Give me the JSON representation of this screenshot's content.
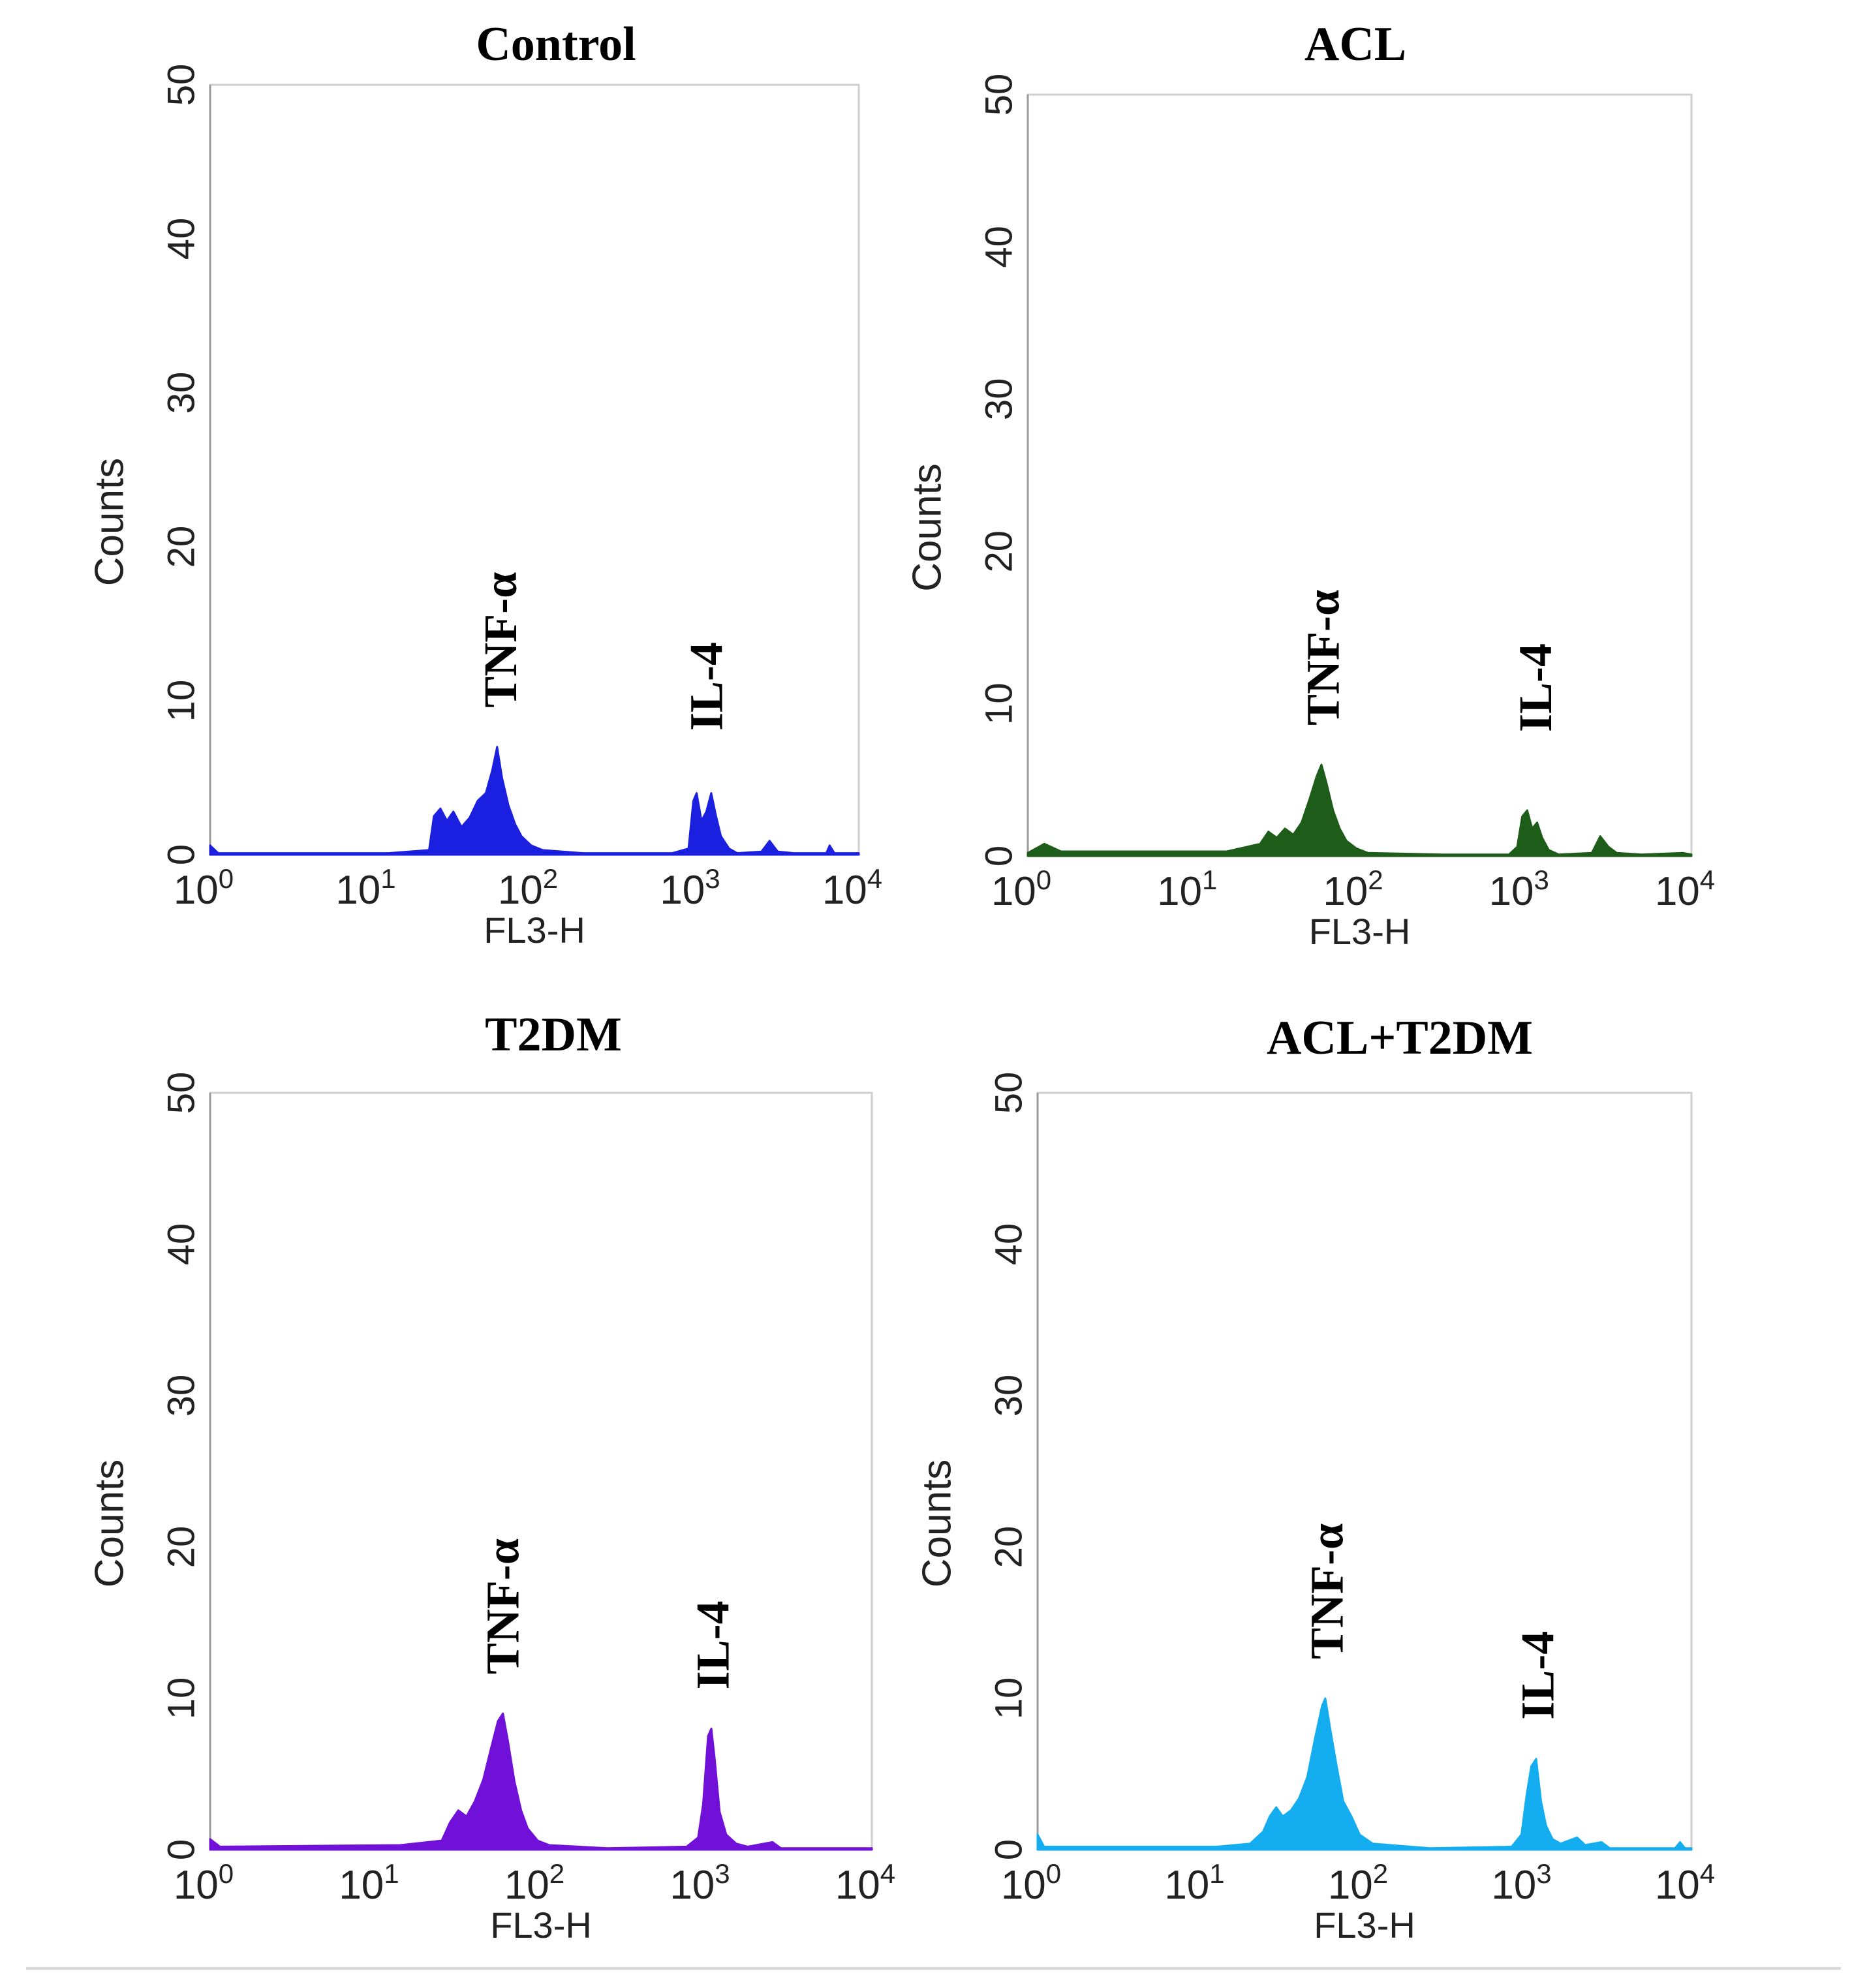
{
  "chart_data": [
    {
      "type": "histogram",
      "title": "Control",
      "xlabel": "FL3-H",
      "ylabel": "Counts",
      "x_scale": "log",
      "xlim_decades": [
        0,
        4
      ],
      "ylim": [
        0,
        50
      ],
      "xticks": [
        "0",
        "1",
        "2",
        "3",
        "4"
      ],
      "yticks": [
        "0",
        "10",
        "20",
        "30",
        "40",
        "50"
      ],
      "color": "#1a1fe0",
      "peaks": [
        {
          "label": "TNF-α",
          "log_x": 1.78,
          "count": 7
        },
        {
          "label": "IL-4",
          "log_x": 3.05,
          "count": 4
        }
      ],
      "profile": [
        [
          0,
          0.6
        ],
        [
          0.05,
          0.1
        ],
        [
          1.1,
          0.1
        ],
        [
          1.35,
          0.3
        ],
        [
          1.38,
          2.5
        ],
        [
          1.42,
          3
        ],
        [
          1.46,
          2.2
        ],
        [
          1.5,
          2.8
        ],
        [
          1.55,
          1.8
        ],
        [
          1.6,
          2.4
        ],
        [
          1.65,
          3.5
        ],
        [
          1.7,
          4
        ],
        [
          1.74,
          5.5
        ],
        [
          1.77,
          7
        ],
        [
          1.8,
          5
        ],
        [
          1.84,
          3.2
        ],
        [
          1.88,
          2
        ],
        [
          1.92,
          1.2
        ],
        [
          1.98,
          0.6
        ],
        [
          2.05,
          0.3
        ],
        [
          2.3,
          0.1
        ],
        [
          2.85,
          0.1
        ],
        [
          2.95,
          0.4
        ],
        [
          2.98,
          3.5
        ],
        [
          3.0,
          4
        ],
        [
          3.03,
          2.2
        ],
        [
          3.06,
          2.8
        ],
        [
          3.09,
          4
        ],
        [
          3.12,
          2.5
        ],
        [
          3.15,
          1.2
        ],
        [
          3.2,
          0.4
        ],
        [
          3.25,
          0.1
        ],
        [
          3.4,
          0.2
        ],
        [
          3.45,
          0.9
        ],
        [
          3.5,
          0.2
        ],
        [
          3.6,
          0.1
        ],
        [
          3.8,
          0.1
        ],
        [
          3.82,
          0.6
        ],
        [
          3.85,
          0.1
        ],
        [
          4.0,
          0.1
        ]
      ]
    },
    {
      "type": "histogram",
      "title": "ACL",
      "xlabel": "FL3-H",
      "ylabel": "Counts",
      "x_scale": "log",
      "xlim_decades": [
        0,
        4
      ],
      "ylim": [
        0,
        50
      ],
      "xticks": [
        "0",
        "1",
        "2",
        "3",
        "4"
      ],
      "yticks": [
        "0",
        "10",
        "20",
        "30",
        "40",
        "50"
      ],
      "color": "#1e5c1a",
      "peaks": [
        {
          "label": "TNF-α",
          "log_x": 1.77,
          "count": 6
        },
        {
          "label": "IL-4",
          "log_x": 3.05,
          "count": 3
        }
      ],
      "profile": [
        [
          0,
          0.2
        ],
        [
          0.1,
          0.8
        ],
        [
          0.2,
          0.3
        ],
        [
          1.2,
          0.3
        ],
        [
          1.4,
          0.8
        ],
        [
          1.45,
          1.6
        ],
        [
          1.5,
          1.2
        ],
        [
          1.55,
          1.8
        ],
        [
          1.6,
          1.4
        ],
        [
          1.65,
          2.2
        ],
        [
          1.7,
          3.8
        ],
        [
          1.74,
          5.2
        ],
        [
          1.77,
          6
        ],
        [
          1.8,
          4.8
        ],
        [
          1.84,
          3
        ],
        [
          1.88,
          1.8
        ],
        [
          1.92,
          1
        ],
        [
          1.98,
          0.5
        ],
        [
          2.05,
          0.2
        ],
        [
          2.5,
          0.1
        ],
        [
          2.9,
          0.1
        ],
        [
          2.95,
          0.6
        ],
        [
          2.98,
          2.6
        ],
        [
          3.01,
          3
        ],
        [
          3.04,
          1.8
        ],
        [
          3.07,
          2.2
        ],
        [
          3.1,
          1.2
        ],
        [
          3.14,
          0.4
        ],
        [
          3.2,
          0.1
        ],
        [
          3.4,
          0.2
        ],
        [
          3.45,
          1.3
        ],
        [
          3.5,
          0.6
        ],
        [
          3.55,
          0.2
        ],
        [
          3.7,
          0.1
        ],
        [
          3.95,
          0.2
        ],
        [
          4.0,
          0.1
        ]
      ]
    },
    {
      "type": "histogram",
      "title": "T2DM",
      "xlabel": "FL3-H",
      "ylabel": "Counts",
      "x_scale": "log",
      "xlim_decades": [
        0,
        4
      ],
      "ylim": [
        0,
        50
      ],
      "xticks": [
        "0",
        "1",
        "2",
        "3",
        "4"
      ],
      "yticks": [
        "0",
        "10",
        "20",
        "30",
        "40",
        "50"
      ],
      "color": "#7010d8",
      "peaks": [
        {
          "label": "TNF-α",
          "log_x": 1.76,
          "count": 9
        },
        {
          "label": "IL-4",
          "log_x": 3.03,
          "count": 8
        }
      ],
      "profile": [
        [
          0,
          0.7
        ],
        [
          0.06,
          0.2
        ],
        [
          1.15,
          0.3
        ],
        [
          1.4,
          0.6
        ],
        [
          1.45,
          1.8
        ],
        [
          1.5,
          2.6
        ],
        [
          1.55,
          2.2
        ],
        [
          1.6,
          3.2
        ],
        [
          1.65,
          4.6
        ],
        [
          1.7,
          6.8
        ],
        [
          1.74,
          8.5
        ],
        [
          1.77,
          9
        ],
        [
          1.8,
          7.2
        ],
        [
          1.84,
          4.5
        ],
        [
          1.88,
          2.6
        ],
        [
          1.92,
          1.4
        ],
        [
          1.98,
          0.6
        ],
        [
          2.05,
          0.3
        ],
        [
          2.4,
          0.1
        ],
        [
          2.88,
          0.2
        ],
        [
          2.95,
          0.8
        ],
        [
          2.98,
          3
        ],
        [
          3.01,
          7.5
        ],
        [
          3.03,
          8
        ],
        [
          3.05,
          6
        ],
        [
          3.08,
          2.5
        ],
        [
          3.12,
          1
        ],
        [
          3.18,
          0.4
        ],
        [
          3.25,
          0.2
        ],
        [
          3.4,
          0.5
        ],
        [
          3.45,
          0.1
        ],
        [
          4.0,
          0.1
        ]
      ]
    },
    {
      "type": "histogram",
      "title": "ACL+T2DM",
      "xlabel": "FL3-H",
      "ylabel": "Counts",
      "x_scale": "log",
      "xlim_decades": [
        0,
        4
      ],
      "ylim": [
        0,
        50
      ],
      "xticks": [
        "0",
        "1",
        "2",
        "3",
        "4"
      ],
      "yticks": [
        "0",
        "10",
        "20",
        "30",
        "40",
        "50"
      ],
      "color": "#14aef0",
      "peaks": [
        {
          "label": "TNF-α",
          "log_x": 1.76,
          "count": 10
        },
        {
          "label": "IL-4",
          "log_x": 3.05,
          "count": 6
        }
      ],
      "profile": [
        [
          0,
          1
        ],
        [
          0.04,
          0.2
        ],
        [
          1.1,
          0.2
        ],
        [
          1.3,
          0.4
        ],
        [
          1.38,
          1.2
        ],
        [
          1.42,
          2.2
        ],
        [
          1.46,
          2.8
        ],
        [
          1.5,
          2.2
        ],
        [
          1.55,
          2.6
        ],
        [
          1.6,
          3.4
        ],
        [
          1.65,
          4.8
        ],
        [
          1.7,
          7.5
        ],
        [
          1.74,
          9.5
        ],
        [
          1.76,
          10
        ],
        [
          1.79,
          8
        ],
        [
          1.83,
          5.5
        ],
        [
          1.87,
          3.2
        ],
        [
          1.92,
          2.2
        ],
        [
          1.97,
          1
        ],
        [
          2.05,
          0.4
        ],
        [
          2.4,
          0.1
        ],
        [
          2.9,
          0.2
        ],
        [
          2.96,
          1
        ],
        [
          2.99,
          3.5
        ],
        [
          3.02,
          5.5
        ],
        [
          3.05,
          6
        ],
        [
          3.08,
          3.2
        ],
        [
          3.11,
          1.6
        ],
        [
          3.15,
          0.7
        ],
        [
          3.2,
          0.4
        ],
        [
          3.3,
          0.8
        ],
        [
          3.35,
          0.3
        ],
        [
          3.45,
          0.5
        ],
        [
          3.5,
          0.1
        ],
        [
          3.9,
          0.1
        ],
        [
          3.93,
          0.5
        ],
        [
          3.96,
          0.1
        ],
        [
          4.0,
          0.1
        ]
      ]
    }
  ]
}
